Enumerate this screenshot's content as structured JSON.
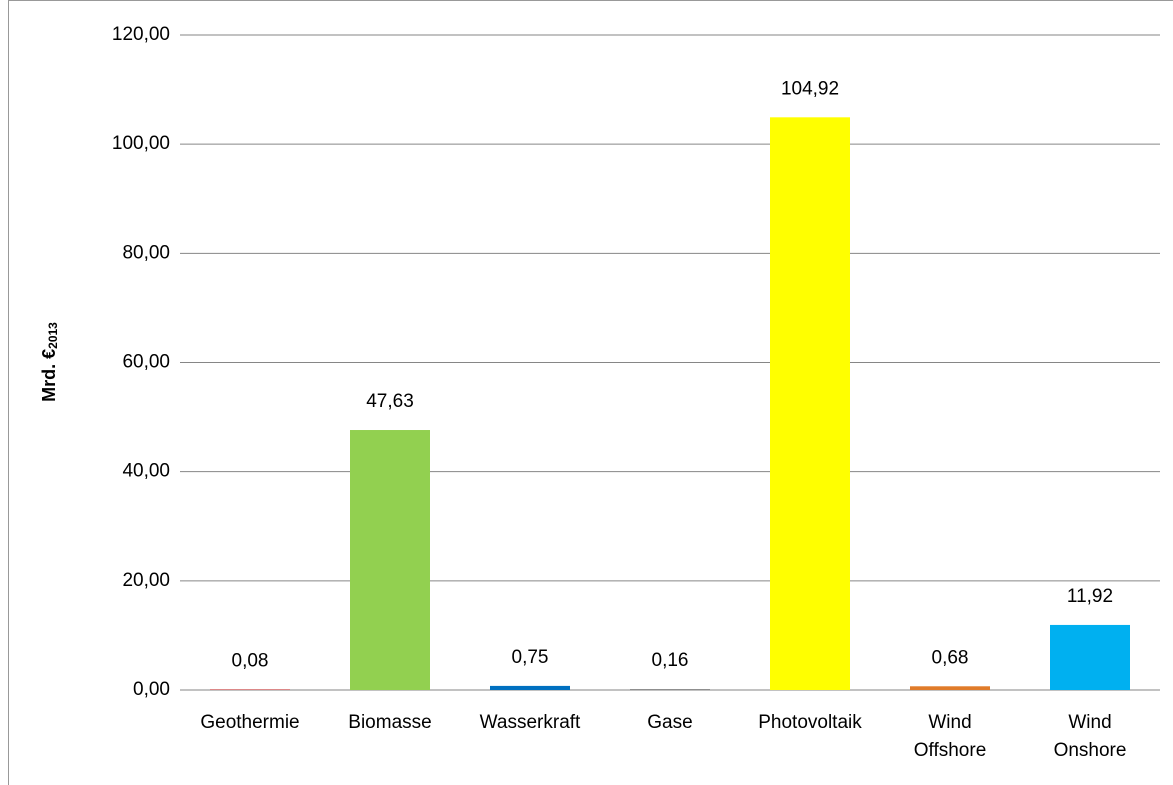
{
  "chart_data": {
    "type": "bar",
    "ylabel": "Mrd. €",
    "ylabel_subscript": "2013",
    "categories": [
      "Geothermie",
      "Biomasse",
      "Wasserkraft",
      "Gase",
      "Photovoltaik",
      "Wind Offshore",
      "Wind Onshore"
    ],
    "values": [
      0.08,
      47.63,
      0.75,
      0.16,
      104.92,
      0.68,
      11.92
    ],
    "value_labels": [
      "0,08",
      "47,63",
      "0,75",
      "0,16",
      "104,92",
      "0,68",
      "11,92"
    ],
    "colors": [
      "#c00000",
      "#92d050",
      "#0070c0",
      "#7f7f7f",
      "#ffff00",
      "#e07b2a",
      "#00b0f0"
    ],
    "ylim": [
      0,
      120
    ],
    "yticks": [
      {
        "value": 0,
        "label": "0,00"
      },
      {
        "value": 20,
        "label": "20,00"
      },
      {
        "value": 40,
        "label": "40,00"
      },
      {
        "value": 60,
        "label": "60,00"
      },
      {
        "value": 80,
        "label": "80,00"
      },
      {
        "value": 100,
        "label": "100,00"
      },
      {
        "value": 120,
        "label": "120,00"
      }
    ],
    "grid": true
  }
}
